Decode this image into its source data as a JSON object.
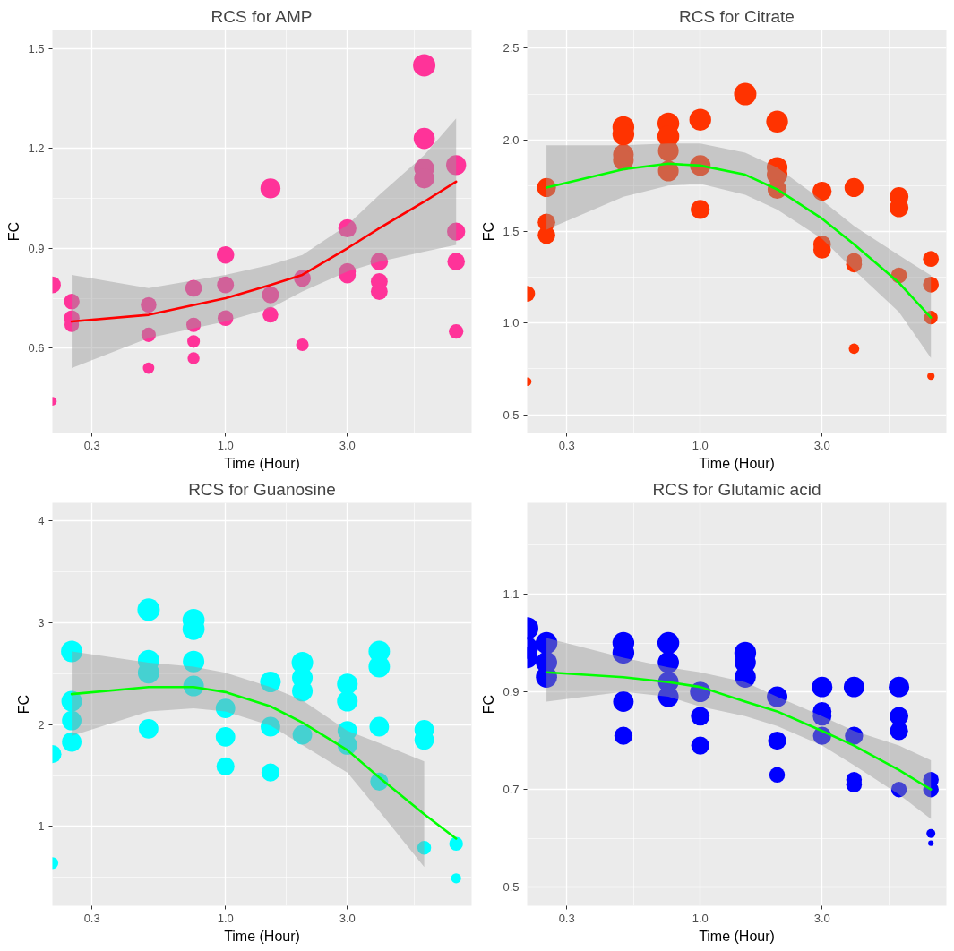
{
  "chart_data": [
    {
      "type": "bubble",
      "title": "RCS for AMP",
      "xlabel": "Time (Hour)",
      "ylabel": "FC",
      "log": "x",
      "grid": true,
      "xlim": [
        0.21,
        9.2
      ],
      "ylim": [
        0.345,
        1.556
      ],
      "xticks": [
        {
          "value": 0.3,
          "label": "0.3"
        },
        {
          "value": 0.548,
          "label": null
        },
        {
          "value": 1,
          "label": "1.0"
        },
        {
          "value": 1.73,
          "label": null
        },
        {
          "value": 3,
          "label": "3.0"
        },
        {
          "value": 5.48,
          "label": null
        }
      ],
      "yticks": [
        {
          "value": 0.45,
          "label": null
        },
        0.6,
        {
          "value": 0.75,
          "label": null
        },
        0.9,
        {
          "value": 1.05,
          "label": null
        },
        1.2,
        {
          "value": 1.35,
          "label": null
        },
        1.5
      ],
      "series": [
        {
          "color": "#ff3399",
          "x": [
            0.21,
            0.21,
            0.25,
            0.25,
            0.25,
            0.5,
            0.5,
            0.5,
            0.75,
            0.75,
            0.75,
            0.75,
            1,
            1,
            1,
            1.5,
            1.5,
            1.5,
            2,
            2,
            3,
            3,
            3,
            4,
            4,
            4,
            6,
            6,
            6,
            6,
            8,
            8,
            8,
            8
          ],
          "values": [
            0.79,
            0.44,
            0.74,
            0.69,
            0.67,
            0.73,
            0.64,
            0.54,
            0.78,
            0.67,
            0.62,
            0.57,
            0.88,
            0.79,
            0.69,
            1.08,
            0.76,
            0.7,
            0.81,
            0.61,
            0.96,
            0.83,
            0.82,
            0.86,
            0.8,
            0.77,
            1.45,
            1.23,
            1.14,
            1.11,
            1.15,
            0.95,
            0.86,
            0.65
          ],
          "sizes": [
            0.57,
            0.15,
            0.49,
            0.49,
            0.42,
            0.49,
            0.42,
            0.26,
            0.57,
            0.42,
            0.32,
            0.29,
            0.61,
            0.57,
            0.49,
            0.8,
            0.57,
            0.49,
            0.57,
            0.32,
            0.66,
            0.57,
            0.57,
            0.61,
            0.57,
            0.57,
            1,
            0.89,
            0.8,
            0.8,
            0.8,
            0.66,
            0.61,
            0.42
          ]
        },
        {
          "type": "line",
          "color": "#ff0000",
          "x": [
            0.25,
            0.5,
            1,
            1.5,
            2,
            3,
            4,
            6,
            8
          ],
          "values": [
            0.68,
            0.7,
            0.75,
            0.79,
            0.82,
            0.9,
            0.96,
            1.04,
            1.1
          ],
          "upper": [
            0.82,
            0.78,
            0.82,
            0.85,
            0.88,
            0.97,
            1.06,
            1.18,
            1.29
          ],
          "lower": [
            0.54,
            0.63,
            0.68,
            0.72,
            0.77,
            0.83,
            0.86,
            0.89,
            0.91
          ]
        }
      ]
    },
    {
      "type": "bubble",
      "title": "RCS for Citrate",
      "xlabel": "Time (Hour)",
      "ylabel": "FC",
      "log": "x",
      "grid": true,
      "xlim": [
        0.21,
        9.2
      ],
      "ylim": [
        0.4,
        2.6
      ],
      "xticks": [
        {
          "value": 0.3,
          "label": "0.3"
        },
        {
          "value": 0.548,
          "label": null
        },
        {
          "value": 1,
          "label": "1.0"
        },
        {
          "value": 1.73,
          "label": null
        },
        {
          "value": 3,
          "label": "3.0"
        },
        {
          "value": 5.48,
          "label": null
        }
      ],
      "yticks": [
        0.5,
        {
          "value": 0.75,
          "label": null
        },
        {
          "value": 1,
          "label": "1.0"
        },
        {
          "value": 1.25,
          "label": null
        },
        1.5,
        {
          "value": 1.75,
          "label": null
        },
        {
          "value": 2,
          "label": "2.0"
        },
        {
          "value": 2.25,
          "label": null
        },
        2.5
      ],
      "series": [
        {
          "color": "#ff3300",
          "x": [
            0.21,
            0.21,
            0.25,
            0.25,
            0.25,
            0.5,
            0.5,
            0.5,
            0.5,
            0.75,
            0.75,
            0.75,
            0.75,
            1,
            1,
            1,
            1.5,
            2,
            2,
            2,
            2,
            3,
            3,
            3,
            4,
            4,
            4,
            4,
            6,
            6,
            6,
            8,
            8,
            8,
            8
          ],
          "values": [
            1.16,
            0.68,
            1.74,
            1.55,
            1.48,
            2.07,
            2.03,
            1.92,
            1.89,
            2.09,
            2.02,
            1.94,
            1.83,
            2.11,
            1.86,
            1.62,
            2.25,
            2.1,
            1.85,
            1.81,
            1.73,
            1.72,
            1.43,
            1.4,
            1.74,
            1.34,
            1.32,
            0.86,
            1.69,
            1.63,
            1.26,
            1.35,
            1.21,
            1.03,
            0.71
          ],
          "sizes": [
            0.5,
            0.15,
            0.72,
            0.62,
            0.62,
            0.95,
            0.95,
            0.85,
            0.85,
            0.95,
            0.95,
            0.85,
            0.85,
            0.95,
            0.85,
            0.72,
            1,
            0.95,
            0.85,
            0.85,
            0.72,
            0.72,
            0.62,
            0.62,
            0.72,
            0.5,
            0.5,
            0.22,
            0.72,
            0.72,
            0.5,
            0.5,
            0.5,
            0.37,
            0.11
          ]
        },
        {
          "type": "line",
          "color": "#00ff00",
          "x": [
            0.25,
            0.5,
            0.75,
            1,
            1.5,
            2,
            3,
            4,
            6,
            8
          ],
          "values": [
            1.74,
            1.84,
            1.87,
            1.86,
            1.81,
            1.73,
            1.57,
            1.43,
            1.22,
            1.03
          ],
          "upper": [
            1.97,
            1.97,
            1.98,
            1.98,
            1.93,
            1.85,
            1.67,
            1.53,
            1.37,
            1.26
          ],
          "lower": [
            1.51,
            1.69,
            1.75,
            1.76,
            1.7,
            1.62,
            1.46,
            1.29,
            1.06,
            0.81
          ]
        }
      ]
    },
    {
      "type": "bubble",
      "title": "RCS for Guanosine",
      "xlabel": "Time (Hour)",
      "ylabel": "FC",
      "log": "x",
      "grid": true,
      "xlim": [
        0.21,
        9.2
      ],
      "ylim": [
        0.22,
        4.18
      ],
      "xticks": [
        {
          "value": 0.3,
          "label": "0.3"
        },
        {
          "value": 0.548,
          "label": null
        },
        {
          "value": 1,
          "label": "1.0"
        },
        {
          "value": 1.73,
          "label": null
        },
        {
          "value": 3,
          "label": "3.0"
        },
        {
          "value": 5.48,
          "label": null
        }
      ],
      "yticks": [
        {
          "value": 0.5,
          "label": null
        },
        1,
        {
          "value": 1.5,
          "label": null
        },
        2,
        {
          "value": 2.5,
          "label": null
        },
        3,
        {
          "value": 3.5,
          "label": null
        },
        4
      ],
      "series": [
        {
          "color": "#00ffff",
          "x": [
            0.21,
            0.21,
            0.25,
            0.25,
            0.25,
            0.25,
            0.5,
            0.5,
            0.5,
            0.5,
            0.75,
            0.75,
            0.75,
            0.75,
            1,
            1,
            1,
            1.5,
            1.5,
            1.5,
            2,
            2,
            2,
            2,
            3,
            3,
            3,
            3,
            4,
            4,
            4,
            4,
            6,
            6,
            6,
            8,
            8
          ],
          "values": [
            1.71,
            0.64,
            2.72,
            2.23,
            2.04,
            1.83,
            3.13,
            2.63,
            2.51,
            1.96,
            3.03,
            2.94,
            2.62,
            2.38,
            2.16,
            1.88,
            1.59,
            2.42,
            1.98,
            1.53,
            2.61,
            2.46,
            2.33,
            1.9,
            2.4,
            2.23,
            1.94,
            1.8,
            2.72,
            2.57,
            1.98,
            1.44,
            1.95,
            1.85,
            0.79,
            0.83,
            0.49
          ],
          "sizes": [
            0.65,
            0.28,
            0.92,
            0.85,
            0.76,
            0.76,
            1,
            0.92,
            0.92,
            0.76,
            0.97,
            0.97,
            0.92,
            0.85,
            0.76,
            0.76,
            0.65,
            0.85,
            0.76,
            0.65,
            0.92,
            0.85,
            0.85,
            0.76,
            0.85,
            0.85,
            0.76,
            0.76,
            0.92,
            0.92,
            0.76,
            0.65,
            0.76,
            0.76,
            0.38,
            0.38,
            0.2
          ]
        },
        {
          "type": "line",
          "color": "#00ff00",
          "x": [
            0.25,
            0.5,
            0.75,
            1,
            1.5,
            2,
            3,
            4,
            6,
            8
          ],
          "values": [
            2.3,
            2.37,
            2.37,
            2.32,
            2.18,
            2.02,
            1.75,
            1.48,
            1.12,
            0.88
          ],
          "upper": [
            2.72,
            2.61,
            2.57,
            2.51,
            2.37,
            2.24,
            1.94,
            1.82,
            1.64,
            null
          ],
          "lower": [
            1.89,
            2.13,
            2.16,
            2.13,
            1.99,
            1.8,
            1.53,
            1.15,
            0.6,
            null
          ]
        }
      ]
    },
    {
      "type": "bubble",
      "title": "RCS for Glutamic acid",
      "xlabel": "Time (Hour)",
      "ylabel": "FC",
      "log": "x",
      "grid": true,
      "xlim": [
        0.21,
        9.2
      ],
      "ylim": [
        0.462,
        1.287
      ],
      "xticks": [
        {
          "value": 0.3,
          "label": "0.3"
        },
        {
          "value": 0.548,
          "label": null
        },
        {
          "value": 1,
          "label": "1.0"
        },
        {
          "value": 1.73,
          "label": null
        },
        {
          "value": 3,
          "label": "3.0"
        },
        {
          "value": 5.48,
          "label": null
        }
      ],
      "yticks": [
        0.5,
        {
          "value": 0.6,
          "label": null
        },
        0.7,
        {
          "value": 0.8,
          "label": null
        },
        0.9,
        {
          "value": 1.0,
          "label": null
        },
        1.1,
        {
          "value": 1.2,
          "label": null
        }
      ],
      "series": [
        {
          "color": "#0000ff",
          "x": [
            0.21,
            0.21,
            0.21,
            0.25,
            0.25,
            0.25,
            0.5,
            0.5,
            0.5,
            0.5,
            0.75,
            0.75,
            0.75,
            0.75,
            1,
            1,
            1,
            1.5,
            1.5,
            1.5,
            2,
            2,
            2,
            3,
            3,
            3,
            3,
            4,
            4,
            4,
            4,
            6,
            6,
            6,
            6,
            8,
            8,
            8,
            8
          ],
          "values": [
            1.03,
            0.99,
            0.97,
            1.0,
            0.96,
            0.93,
            1.0,
            0.98,
            0.88,
            0.81,
            1.0,
            0.96,
            0.92,
            0.89,
            0.9,
            0.85,
            0.79,
            0.98,
            0.96,
            0.93,
            0.89,
            0.8,
            0.73,
            0.91,
            0.86,
            0.85,
            0.81,
            0.91,
            0.81,
            0.72,
            0.71,
            0.91,
            0.85,
            0.82,
            0.7,
            0.72,
            0.7,
            0.61,
            0.59
          ],
          "sizes": [
            1,
            0.95,
            0.9,
            0.95,
            0.9,
            0.9,
            0.95,
            0.95,
            0.84,
            0.66,
            0.95,
            0.9,
            0.84,
            0.84,
            0.84,
            0.7,
            0.66,
            0.95,
            0.9,
            0.9,
            0.84,
            0.66,
            0.49,
            0.84,
            0.7,
            0.7,
            0.66,
            0.84,
            0.66,
            0.49,
            0.49,
            0.84,
            0.7,
            0.66,
            0.49,
            0.49,
            0.49,
            0.16,
            0.06
          ]
        },
        {
          "type": "line",
          "color": "#00ff00",
          "x": [
            0.25,
            0.5,
            0.75,
            1,
            1.5,
            2,
            3,
            4,
            6,
            8
          ],
          "values": [
            0.94,
            0.93,
            0.92,
            0.91,
            0.88,
            0.86,
            0.82,
            0.79,
            0.74,
            0.7
          ],
          "upper": [
            1.01,
            0.97,
            0.95,
            0.94,
            0.92,
            0.89,
            0.85,
            0.82,
            0.79,
            0.76
          ],
          "lower": [
            0.88,
            0.9,
            0.89,
            0.87,
            0.85,
            0.83,
            0.79,
            0.75,
            0.69,
            0.64
          ]
        }
      ]
    }
  ]
}
